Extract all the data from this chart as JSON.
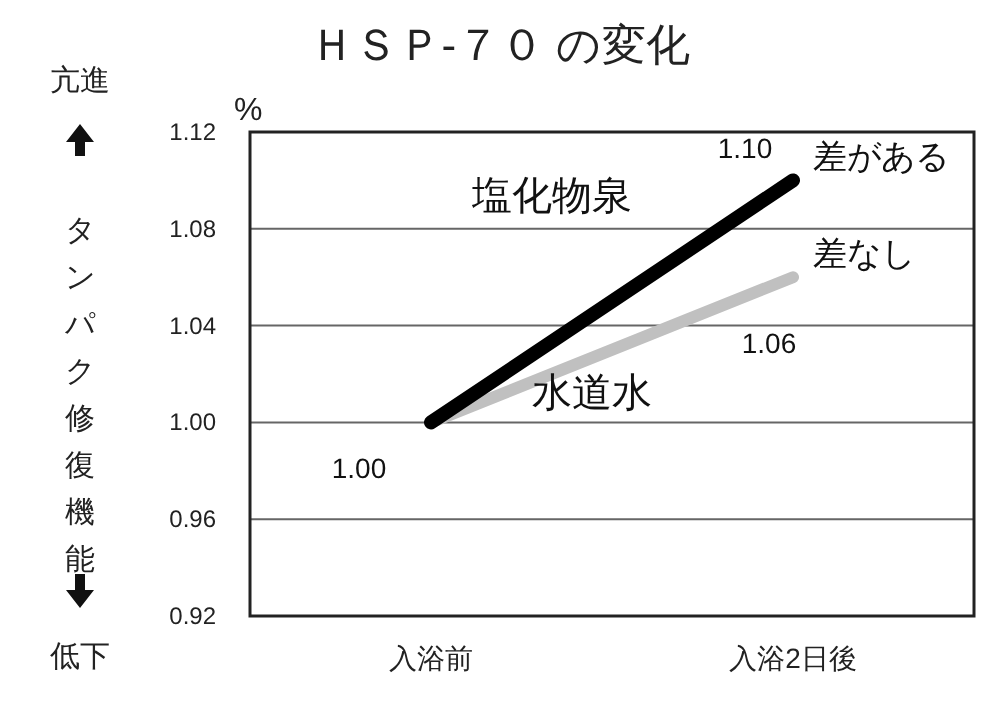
{
  "chart_data": {
    "type": "line",
    "title": "ＨＳＰ-７０ の変化",
    "ylabel": "タンパク修復機能",
    "categories": [
      "入浴前",
      "入浴2日後"
    ],
    "series": [
      {
        "name": "塩化物泉",
        "color": "#000000",
        "values": [
          1.0,
          1.1
        ],
        "value_labels": [
          "1.00",
          "1.10"
        ]
      },
      {
        "name": "水道水",
        "color": "#c0c0c0",
        "values": [
          1.0,
          1.06
        ],
        "value_labels": [
          null,
          "1.06"
        ]
      }
    ],
    "ylim": [
      0.92,
      1.12
    ],
    "yticks": [
      {
        "value": 0.92,
        "label": "0.92"
      },
      {
        "value": 0.96,
        "label": "0.96"
      },
      {
        "value": 1.0,
        "label": "1.00"
      },
      {
        "value": 1.04,
        "label": "1.04"
      },
      {
        "value": 1.08,
        "label": "1.08"
      },
      {
        "value": 1.12,
        "label": "1.12"
      }
    ],
    "grid": "y",
    "marker": "none",
    "line_style": "solid",
    "annotations": [
      "%",
      "亢進",
      "低下",
      {
        "text": "差がある",
        "x": "入浴2日後",
        "y": 1.1
      },
      {
        "text": "差なし",
        "x": "入浴2日後",
        "y": 1.06
      }
    ]
  }
}
